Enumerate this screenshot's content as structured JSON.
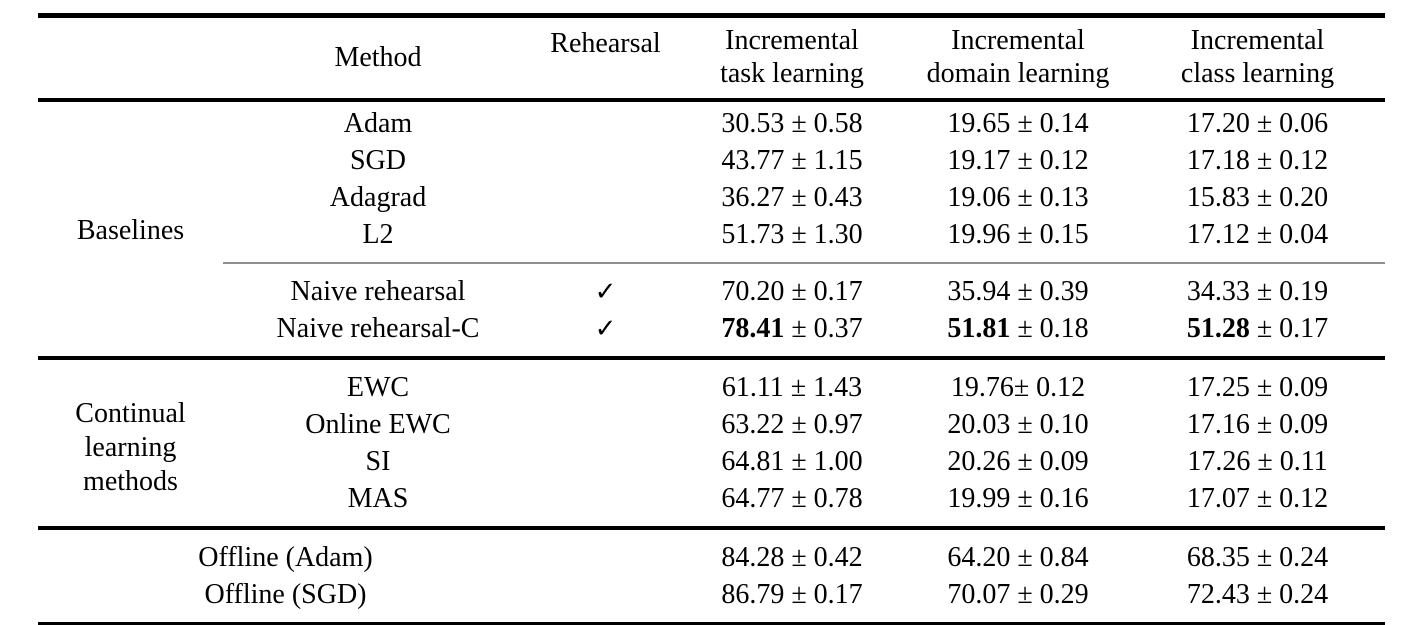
{
  "table": {
    "header": {
      "group": "",
      "method": "Method",
      "rehearsal": "Rehearsal",
      "incremental_task": "Incremental\ntask learning",
      "incremental_domain": "Incremental\ndomain learning",
      "incremental_class": "Incremental\nclass learning"
    },
    "checkmark_glyph": "✓",
    "plus_minus_glyph": "±",
    "colors": {
      "text": "#000000",
      "thick_rule": "#000000",
      "thin_rule": "#8f8f8f",
      "background": "#ffffff"
    },
    "sections": [
      {
        "group_label": "Baselines",
        "subgroups": [
          {
            "rows": [
              {
                "method": "Adam",
                "rehearsal": false,
                "bold": false,
                "values": [
                  "30.53 ± 0.58",
                  "19.65 ± 0.14",
                  "17.20 ± 0.06"
                ]
              },
              {
                "method": "SGD",
                "rehearsal": false,
                "bold": false,
                "values": [
                  "43.77 ± 1.15",
                  "19.17 ± 0.12",
                  "17.18 ± 0.12"
                ]
              },
              {
                "method": "Adagrad",
                "rehearsal": false,
                "bold": false,
                "values": [
                  "36.27 ± 0.43",
                  "19.06 ± 0.13",
                  "15.83 ± 0.20"
                ]
              },
              {
                "method": "L2",
                "rehearsal": false,
                "bold": false,
                "values": [
                  "51.73 ± 1.30",
                  "19.96 ± 0.15",
                  "17.12 ± 0.04"
                ]
              }
            ]
          },
          {
            "rows": [
              {
                "method": "Naive rehearsal",
                "rehearsal": true,
                "bold": false,
                "values": [
                  "70.20 ± 0.17",
                  "35.94 ± 0.39",
                  "34.33 ± 0.19"
                ]
              },
              {
                "method": "Naive rehearsal-C",
                "rehearsal": true,
                "bold": true,
                "values": [
                  "78.41 ± 0.37",
                  "51.81 ± 0.18",
                  "51.28 ± 0.17"
                ]
              }
            ]
          }
        ]
      },
      {
        "group_label": "Continual\nlearning\nmethods",
        "subgroups": [
          {
            "rows": [
              {
                "method": "EWC",
                "rehearsal": false,
                "bold": false,
                "values": [
                  "61.11 ± 1.43",
                  "19.76± 0.12",
                  "17.25 ± 0.09"
                ]
              },
              {
                "method": "Online EWC",
                "rehearsal": false,
                "bold": false,
                "values": [
                  "63.22 ± 0.97",
                  "20.03 ± 0.10",
                  "17.16 ± 0.09"
                ]
              },
              {
                "method": "SI",
                "rehearsal": false,
                "bold": false,
                "values": [
                  "64.81 ± 1.00",
                  "20.26 ± 0.09",
                  "17.26 ± 0.11"
                ]
              },
              {
                "method": "MAS",
                "rehearsal": false,
                "bold": false,
                "values": [
                  "64.77 ± 0.78",
                  "19.99 ± 0.16",
                  "17.07 ± 0.12"
                ]
              }
            ]
          }
        ]
      },
      {
        "group_label": null,
        "subgroups": [
          {
            "rows": [
              {
                "method": "Offline (Adam)",
                "span_group": true,
                "rehearsal": false,
                "bold": false,
                "values": [
                  "84.28 ± 0.42",
                  "64.20 ± 0.84",
                  "68.35 ± 0.24"
                ]
              },
              {
                "method": "Offline (SGD)",
                "span_group": true,
                "rehearsal": false,
                "bold": false,
                "values": [
                  "86.79 ± 0.17",
                  "70.07 ± 0.29",
                  "72.43 ± 0.24"
                ]
              }
            ]
          }
        ]
      }
    ]
  }
}
